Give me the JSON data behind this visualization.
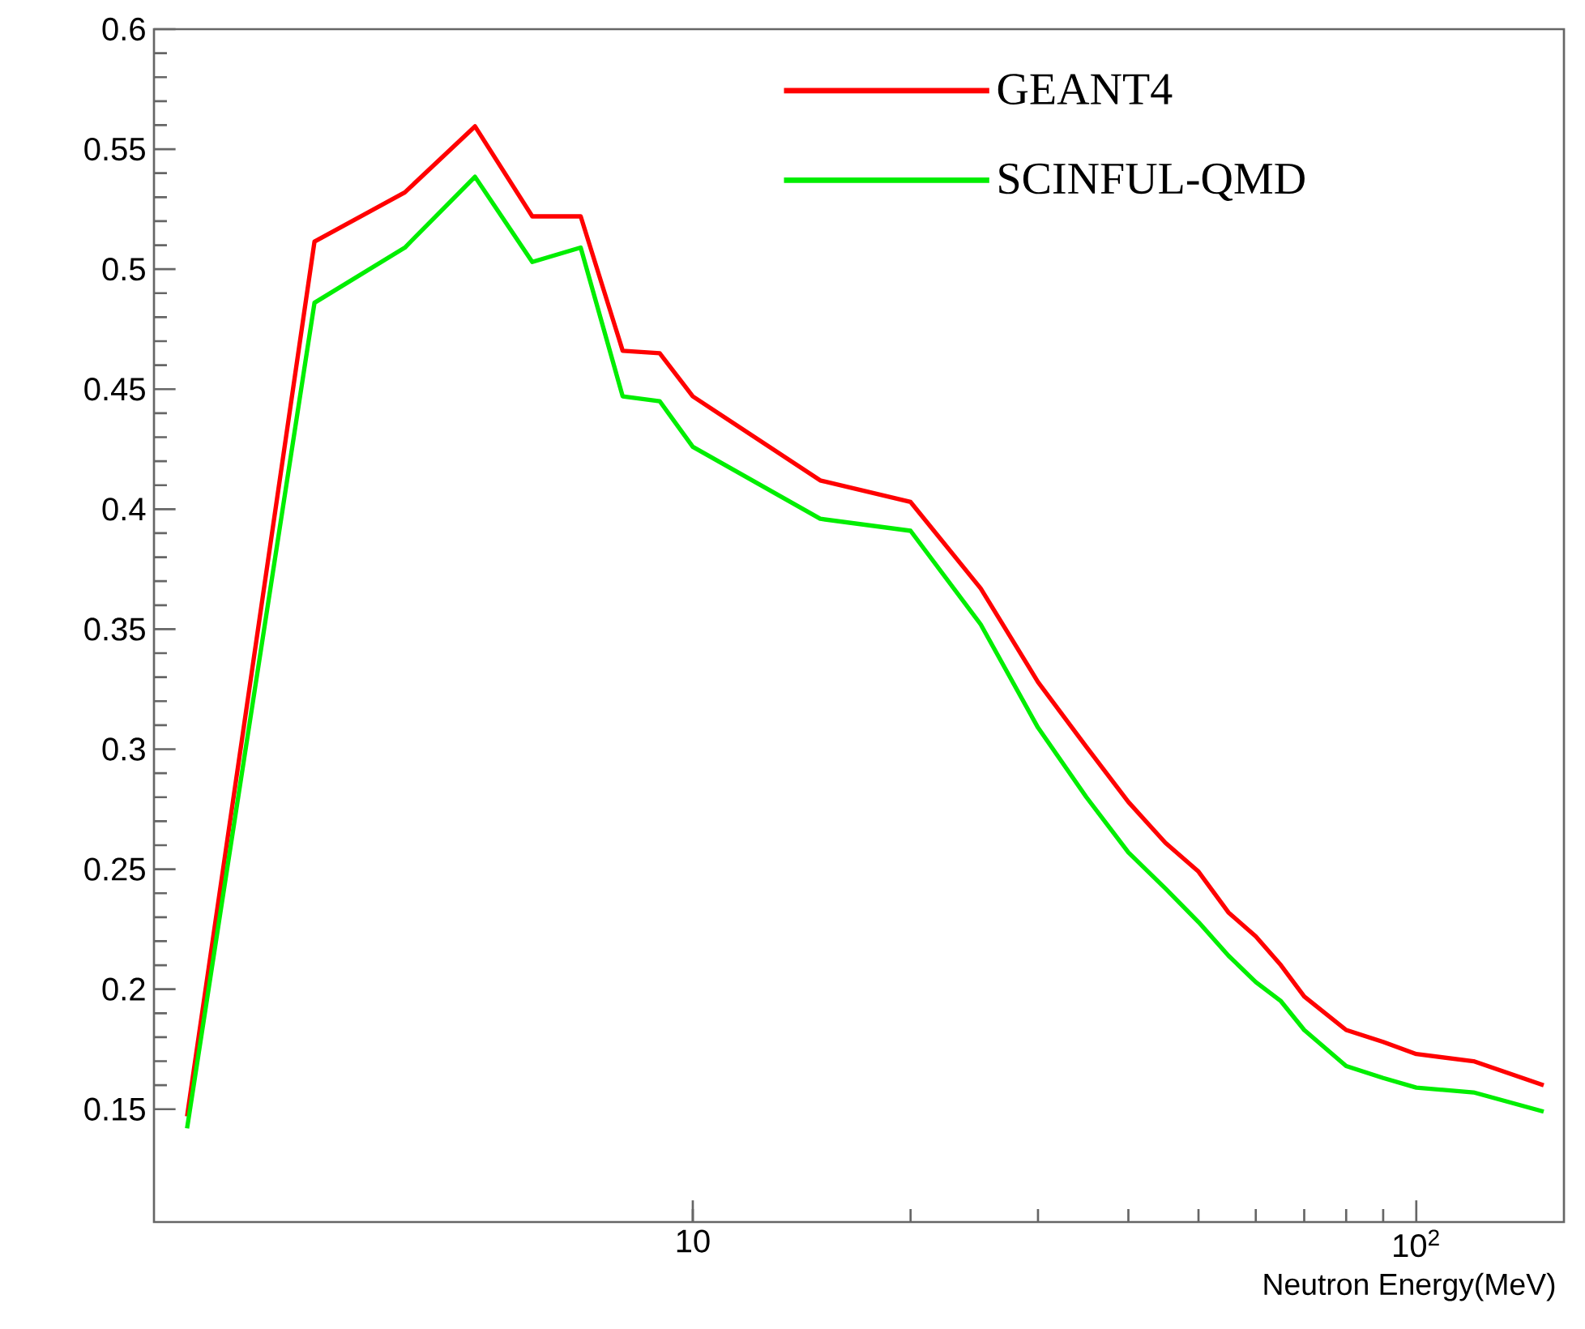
{
  "chart_data": {
    "type": "line",
    "xlabel": "Neutron Energy(MeV)",
    "log": "x",
    "x": [
      2,
      3,
      4,
      5,
      6,
      7,
      8,
      9,
      10,
      15,
      20,
      25,
      30,
      35,
      40,
      45,
      50,
      55,
      60,
      65,
      70,
      80,
      90,
      100,
      120,
      150
    ],
    "series": [
      {
        "name": "GEANT4",
        "color": "#ff0000",
        "values": [
          0.147,
          0.5115,
          0.532,
          0.5595,
          0.522,
          0.522,
          0.466,
          0.465,
          0.447,
          0.412,
          0.403,
          0.367,
          0.328,
          0.301,
          0.278,
          0.261,
          0.249,
          0.232,
          0.222,
          0.21,
          0.197,
          0.183,
          0.178,
          0.173,
          0.17,
          0.16
        ]
      },
      {
        "name": "SCINFUL-QMD",
        "color": "#00ee00",
        "values": [
          0.142,
          0.486,
          0.509,
          0.5385,
          0.503,
          0.509,
          0.447,
          0.445,
          0.426,
          0.396,
          0.391,
          0.352,
          0.309,
          0.28,
          0.257,
          0.242,
          0.228,
          0.214,
          0.203,
          0.195,
          0.183,
          0.168,
          0.163,
          0.159,
          0.157,
          0.149
        ]
      }
    ],
    "xlim": [
      1.8,
      160
    ],
    "ylim": [
      0.103,
      0.6
    ],
    "xticks": [
      10,
      {
        "value": 100,
        "label": "10$^{2}$"
      }
    ],
    "yticks": [
      0.15,
      0.2,
      0.25,
      0.3,
      0.35,
      0.4,
      0.45,
      0.5,
      0.55,
      0.6
    ],
    "legend": "top right",
    "grid": false,
    "marker": "none",
    "line_style": "solid"
  }
}
